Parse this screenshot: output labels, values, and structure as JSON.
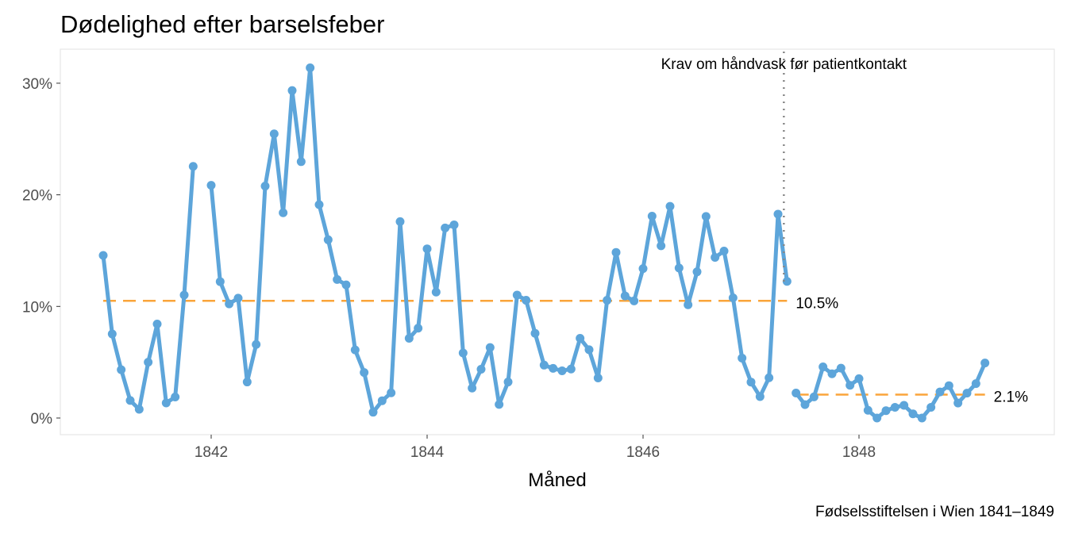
{
  "chart_data": {
    "type": "line",
    "title": "Dødelighed efter barselsfeber",
    "xlabel": "Måned",
    "ylabel": "",
    "caption": "Fødselsstiftelsen i Wien 1841–1849",
    "ylim": [
      0,
      0.32
    ],
    "xlim": [
      "1840-09",
      "1849-08"
    ],
    "x_ticks": [
      1842,
      1844,
      1846,
      1848
    ],
    "y_ticks": [
      {
        "value": 0,
        "label": "0%"
      },
      {
        "value": 0.1,
        "label": "10%"
      },
      {
        "value": 0.2,
        "label": "20%"
      },
      {
        "value": 0.3,
        "label": "30%"
      }
    ],
    "grid": false,
    "line_color": "#5DA5DA",
    "mean_color": "#FAA43A",
    "series": [
      {
        "segment": "before",
        "points": [
          [
            "1841-01",
            0.1457
          ],
          [
            "1841-02",
            0.0753
          ],
          [
            "1841-03",
            0.0433
          ],
          [
            "1841-04",
            0.0157
          ],
          [
            "1841-05",
            0.0078
          ],
          [
            "1841-06",
            0.05
          ],
          [
            "1841-07",
            0.0842
          ],
          [
            "1841-08",
            0.0135
          ],
          [
            "1841-09",
            0.0188
          ],
          [
            "1841-10",
            0.1102
          ],
          [
            "1841-11",
            0.2255
          ],
          [
            "1841-12",
            null
          ],
          [
            "1842-01",
            0.2085
          ],
          [
            "1842-02",
            0.1222
          ],
          [
            "1842-03",
            0.1023
          ],
          [
            "1842-04",
            0.1074
          ],
          [
            "1842-05",
            0.0323
          ],
          [
            "1842-06",
            0.0659
          ],
          [
            "1842-07",
            0.2078
          ],
          [
            "1842-08",
            0.2546
          ],
          [
            "1842-09",
            0.1839
          ],
          [
            "1842-10",
            0.2934
          ],
          [
            "1842-11",
            0.2297
          ],
          [
            "1842-12",
            0.3138
          ],
          [
            "1843-01",
            0.1912
          ],
          [
            "1843-02",
            0.1597
          ],
          [
            "1843-03",
            0.1241
          ],
          [
            "1843-04",
            0.1193
          ],
          [
            "1843-05",
            0.061
          ],
          [
            "1843-06",
            0.0408
          ],
          [
            "1843-07",
            0.0052
          ],
          [
            "1843-08",
            0.0155
          ],
          [
            "1843-09",
            0.0226
          ],
          [
            "1843-10",
            0.176
          ],
          [
            "1843-11",
            0.0714
          ],
          [
            "1843-12",
            0.0805
          ],
          [
            "1844-01",
            0.1516
          ],
          [
            "1844-02",
            0.1128
          ],
          [
            "1844-03",
            0.1703
          ],
          [
            "1844-04",
            0.1731
          ],
          [
            "1844-05",
            0.0583
          ],
          [
            "1844-06",
            0.0268
          ],
          [
            "1844-07",
            0.0437
          ],
          [
            "1844-08",
            0.0632
          ],
          [
            "1844-09",
            0.0122
          ],
          [
            "1844-10",
            0.0323
          ],
          [
            "1844-11",
            0.1102
          ],
          [
            "1844-12",
            0.1055
          ],
          [
            "1845-01",
            0.0759
          ],
          [
            "1845-02",
            0.0474
          ],
          [
            "1845-03",
            0.0445
          ],
          [
            "1845-04",
            0.0423
          ],
          [
            "1845-05",
            0.0439
          ],
          [
            "1845-06",
            0.0714
          ],
          [
            "1845-07",
            0.0612
          ],
          [
            "1845-08",
            0.0359
          ],
          [
            "1845-09",
            0.1055
          ],
          [
            "1845-10",
            0.1484
          ],
          [
            "1845-11",
            0.1094
          ],
          [
            "1845-12",
            0.1049
          ],
          [
            "1846-01",
            0.1339
          ],
          [
            "1846-02",
            0.1809
          ],
          [
            "1846-03",
            0.1543
          ],
          [
            "1846-04",
            0.1897
          ],
          [
            "1846-05",
            0.1344
          ],
          [
            "1846-06",
            0.1015
          ],
          [
            "1846-07",
            0.131
          ],
          [
            "1846-08",
            0.1806
          ],
          [
            "1846-09",
            0.1439
          ],
          [
            "1846-10",
            0.1496
          ],
          [
            "1846-11",
            0.1077
          ],
          [
            "1846-12",
            0.0537
          ],
          [
            "1847-01",
            0.0322
          ],
          [
            "1847-02",
            0.0192
          ],
          [
            "1847-03",
            0.0361
          ],
          [
            "1847-04",
            0.1827
          ],
          [
            "1847-05",
            0.1224
          ]
        ],
        "mean": 0.105,
        "mean_label": "10.5%"
      },
      {
        "segment": "after",
        "points": [
          [
            "1847-06",
            0.0224
          ],
          [
            "1847-07",
            0.012
          ],
          [
            "1847-08",
            0.0189
          ],
          [
            "1847-09",
            0.0458
          ],
          [
            "1847-10",
            0.0396
          ],
          [
            "1847-11",
            0.0447
          ],
          [
            "1847-12",
            0.0293
          ],
          [
            "1848-01",
            0.0353
          ],
          [
            "1848-02",
            0.0069
          ],
          [
            "1848-03",
            0.0
          ],
          [
            "1848-04",
            0.0066
          ],
          [
            "1848-05",
            0.0096
          ],
          [
            "1848-06",
            0.0114
          ],
          [
            "1848-07",
            0.0037
          ],
          [
            "1848-08",
            0.0
          ],
          [
            "1848-09",
            0.0096
          ],
          [
            "1848-10",
            0.0234
          ],
          [
            "1848-11",
            0.029
          ],
          [
            "1848-12",
            0.0134
          ],
          [
            "1849-01",
            0.0223
          ],
          [
            "1849-02",
            0.0308
          ],
          [
            "1849-03",
            0.0493
          ]
        ],
        "mean": 0.021,
        "mean_label": "2.1%"
      }
    ],
    "annotation": {
      "date": "1847-05",
      "label": "Krav om håndvask før patientkontakt"
    }
  }
}
